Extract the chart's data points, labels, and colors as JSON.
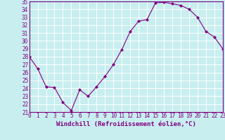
{
  "x": [
    0,
    1,
    2,
    3,
    4,
    5,
    6,
    7,
    8,
    9,
    10,
    11,
    12,
    13,
    14,
    15,
    16,
    17,
    18,
    19,
    20,
    21,
    22,
    23
  ],
  "y": [
    28,
    26.5,
    24.2,
    24.1,
    22.2,
    21.2,
    23.8,
    23.0,
    24.2,
    25.5,
    27.0,
    28.9,
    31.2,
    32.5,
    32.7,
    34.8,
    34.9,
    34.7,
    34.5,
    34.0,
    33.0,
    31.2,
    30.5,
    29.0
  ],
  "xlim": [
    0,
    23
  ],
  "ylim": [
    21,
    35
  ],
  "yticks": [
    21,
    22,
    23,
    24,
    25,
    26,
    27,
    28,
    29,
    30,
    31,
    32,
    33,
    34,
    35
  ],
  "xticks": [
    0,
    1,
    2,
    3,
    4,
    5,
    6,
    7,
    8,
    9,
    10,
    11,
    12,
    13,
    14,
    15,
    16,
    17,
    18,
    19,
    20,
    21,
    22,
    23
  ],
  "xlabel": "Windchill (Refroidissement éolien,°C)",
  "line_color": "#800080",
  "marker": "D",
  "marker_size": 2.0,
  "background_color": "#c8eef0",
  "grid_color": "#ffffff",
  "tick_label_fontsize": 5.5,
  "xlabel_fontsize": 6.5
}
